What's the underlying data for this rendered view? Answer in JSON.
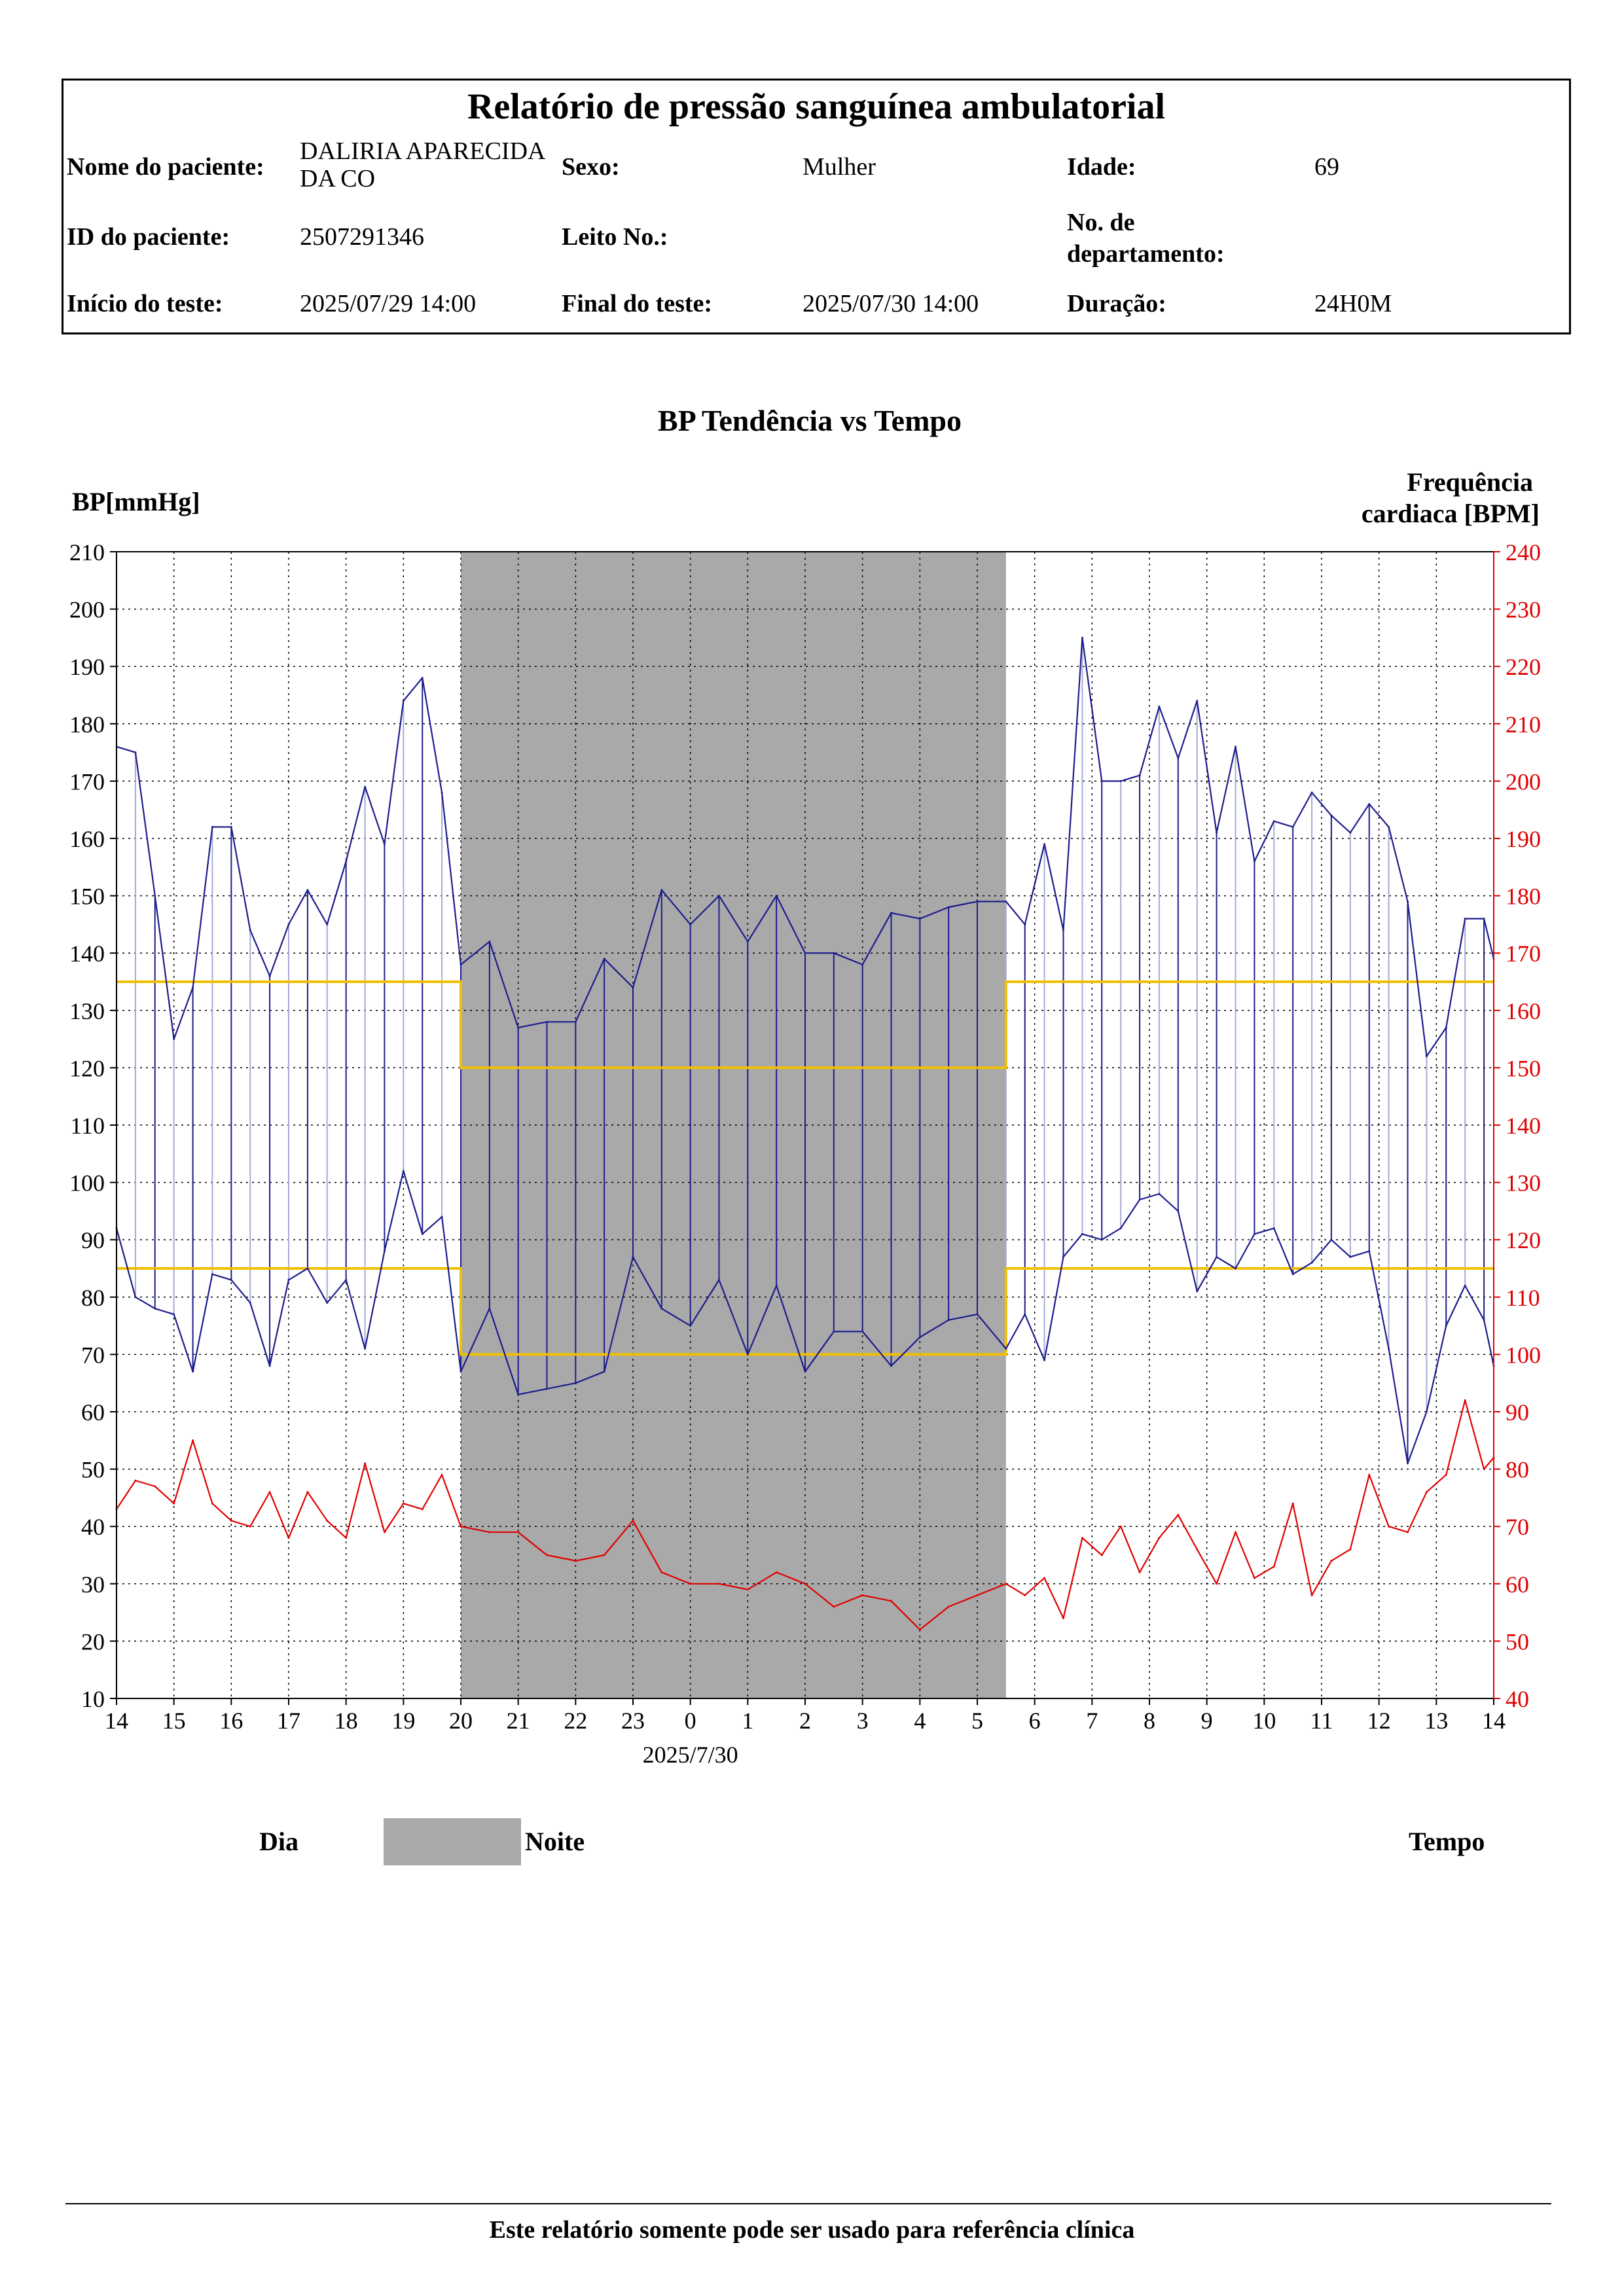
{
  "header": {
    "title": "Relatório de pressão sanguínea ambulatorial",
    "patient_name_label": "Nome do paciente:",
    "patient_name": "DALIRIA APARECIDA  DA CO",
    "sex_label": "Sexo:",
    "sex": "Mulher",
    "age_label": "Idade:",
    "age": "69",
    "patient_id_label": "ID do paciente:",
    "patient_id": "2507291346",
    "bed_label": "Leito No.:",
    "bed": "",
    "department_label": "No. de departamento:",
    "department": "",
    "start_label": "Início do teste:",
    "start": "2025/07/29 14:00",
    "end_label": "Final do teste:",
    "end": "2025/07/30 14:00",
    "duration_label": "Duração:",
    "duration": "24H0M"
  },
  "chart_data": {
    "type": "line",
    "title": "BP Tendência vs Tempo",
    "ylabel": "BP[mmHg]",
    "ylabel_right": "Frequência cardiaca [BPM]",
    "ylim": [
      10,
      210
    ],
    "yticks": [
      10,
      20,
      30,
      40,
      50,
      60,
      70,
      80,
      90,
      100,
      110,
      120,
      130,
      140,
      150,
      160,
      170,
      180,
      190,
      200,
      210
    ],
    "ylim_right": [
      40,
      240
    ],
    "yticks_right": [
      40,
      50,
      60,
      70,
      80,
      90,
      100,
      110,
      120,
      130,
      140,
      150,
      160,
      170,
      180,
      190,
      200,
      210,
      220,
      230,
      240
    ],
    "xlim": [
      0,
      24
    ],
    "xtick_labels": [
      "14",
      "15",
      "16",
      "17",
      "18",
      "19",
      "20",
      "21",
      "22",
      "23",
      "0",
      "1",
      "2",
      "3",
      "4",
      "5",
      "6",
      "7",
      "8",
      "9",
      "10",
      "11",
      "12",
      "13",
      "14"
    ],
    "date_label": "2025/7/30",
    "date_label_hour": 10,
    "x_unit": "hours from 2025/07/29 14:00",
    "night": [
      6,
      15.5
    ],
    "grid": true,
    "colors": {
      "bp": "#1c1c8c",
      "bp_light": "#a9a9d6",
      "hr": "#e00000",
      "limit": "#f0c000",
      "night": "#a9a9a9",
      "right_axis": "#e00000"
    },
    "thresholds": [
      {
        "name": "systolic",
        "points": [
          [
            0,
            135
          ],
          [
            6,
            135
          ],
          [
            6,
            120
          ],
          [
            15.5,
            120
          ],
          [
            15.5,
            135
          ],
          [
            24,
            135
          ]
        ]
      },
      {
        "name": "diastolic",
        "points": [
          [
            0,
            85
          ],
          [
            6,
            85
          ],
          [
            6,
            70
          ],
          [
            15.5,
            70
          ],
          [
            15.5,
            85
          ],
          [
            24,
            85
          ]
        ]
      }
    ],
    "series": [
      {
        "key": "systolic",
        "name": "",
        "axis": "left",
        "x": [
          0,
          0.33,
          0.67,
          1,
          1.33,
          1.67,
          2,
          2.33,
          2.67,
          3,
          3.33,
          3.67,
          4,
          4.33,
          4.67,
          5,
          5.33,
          5.67,
          6,
          6.5,
          7,
          7.5,
          8,
          8.5,
          9,
          9.5,
          10,
          10.5,
          11,
          11.5,
          12,
          12.5,
          13,
          13.5,
          14,
          14.5,
          15,
          15.5,
          15.83,
          16.17,
          16.5,
          16.83,
          17.17,
          17.5,
          17.83,
          18.17,
          18.5,
          18.83,
          19.17,
          19.5,
          19.83,
          20.17,
          20.5,
          20.83,
          21.17,
          21.5,
          21.83,
          22.17,
          22.5,
          22.83,
          23.17,
          23.5,
          23.83,
          24
        ],
        "values": [
          176,
          175,
          150,
          125,
          134,
          162,
          162,
          144,
          136,
          145,
          151,
          145,
          156,
          169,
          159,
          184,
          188,
          168,
          138,
          142,
          127,
          128,
          128,
          139,
          134,
          151,
          145,
          150,
          142,
          150,
          140,
          140,
          138,
          147,
          146,
          148,
          149,
          149,
          145,
          159,
          144,
          195,
          170,
          170,
          171,
          183,
          174,
          184,
          161,
          176,
          156,
          163,
          162,
          168,
          164,
          161,
          166,
          162,
          149,
          122,
          127,
          146,
          146,
          139
        ]
      },
      {
        "key": "diastolic",
        "name": "",
        "axis": "left",
        "x": [
          0,
          0.33,
          0.67,
          1,
          1.33,
          1.67,
          2,
          2.33,
          2.67,
          3,
          3.33,
          3.67,
          4,
          4.33,
          4.67,
          5,
          5.33,
          5.67,
          6,
          6.5,
          7,
          7.5,
          8,
          8.5,
          9,
          9.5,
          10,
          10.5,
          11,
          11.5,
          12,
          12.5,
          13,
          13.5,
          14,
          14.5,
          15,
          15.5,
          15.83,
          16.17,
          16.5,
          16.83,
          17.17,
          17.5,
          17.83,
          18.17,
          18.5,
          18.83,
          19.17,
          19.5,
          19.83,
          20.17,
          20.5,
          20.83,
          21.17,
          21.5,
          21.83,
          22.17,
          22.5,
          22.83,
          23.17,
          23.5,
          23.83,
          24
        ],
        "values": [
          92,
          80,
          78,
          77,
          67,
          84,
          83,
          79,
          68,
          83,
          85,
          79,
          83,
          71,
          88,
          102,
          91,
          94,
          67,
          78,
          63,
          64,
          65,
          67,
          87,
          78,
          75,
          83,
          70,
          82,
          67,
          74,
          74,
          68,
          73,
          76,
          77,
          71,
          77,
          69,
          87,
          91,
          90,
          92,
          97,
          98,
          95,
          81,
          87,
          85,
          91,
          92,
          84,
          86,
          90,
          87,
          88,
          71,
          51,
          60,
          75,
          82,
          76,
          68
        ]
      },
      {
        "key": "heart_rate",
        "name": "",
        "axis": "right",
        "x": [
          0,
          0.33,
          0.67,
          1,
          1.33,
          1.67,
          2,
          2.33,
          2.67,
          3,
          3.33,
          3.67,
          4,
          4.33,
          4.67,
          5,
          5.33,
          5.67,
          6,
          6.5,
          7,
          7.5,
          8,
          8.5,
          9,
          9.5,
          10,
          10.5,
          11,
          11.5,
          12,
          12.5,
          13,
          13.5,
          14,
          14.5,
          15,
          15.5,
          15.83,
          16.17,
          16.5,
          16.83,
          17.17,
          17.5,
          17.83,
          18.17,
          18.5,
          18.83,
          19.17,
          19.5,
          19.83,
          20.17,
          20.5,
          20.83,
          21.17,
          21.5,
          21.83,
          22.17,
          22.5,
          22.83,
          23.17,
          23.5,
          23.83,
          24
        ],
        "values": [
          73,
          78,
          77,
          74,
          85,
          74,
          71,
          70,
          76,
          68,
          76,
          71,
          68,
          81,
          69,
          74,
          73,
          79,
          70,
          69,
          69,
          65,
          64,
          65,
          71,
          62,
          60,
          60,
          59,
          62,
          60,
          56,
          58,
          57,
          52,
          56,
          58,
          60,
          58,
          61,
          54,
          68,
          65,
          70,
          62,
          68,
          72,
          66,
          60,
          69,
          61,
          63,
          74,
          58,
          64,
          66,
          79,
          70,
          69,
          76,
          79,
          92,
          80,
          82
        ]
      }
    ]
  },
  "legend": {
    "day": "Dia",
    "night": "Noite",
    "time": "Tempo"
  },
  "footer": "Este relatório somente pode ser usado para referência clínica"
}
